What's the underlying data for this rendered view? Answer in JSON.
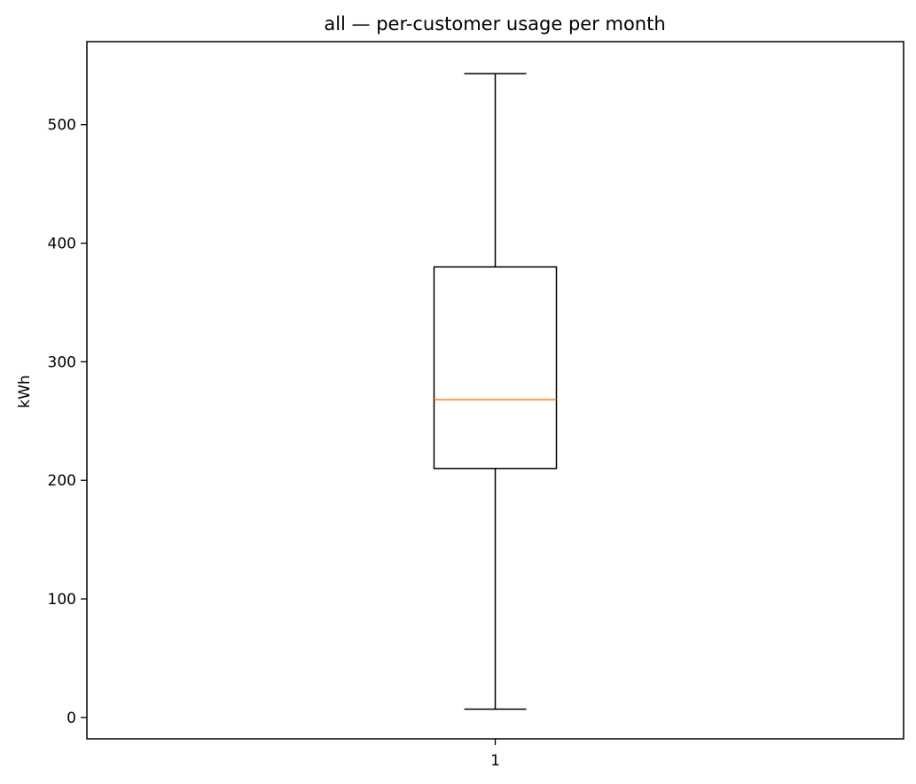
{
  "chart_data": {
    "type": "box",
    "title": "all — per-customer usage per month",
    "xlabel": "",
    "ylabel": "kWh",
    "ylim": [
      -18,
      570
    ],
    "x_ticks": [
      "1"
    ],
    "y_ticks": [
      0,
      100,
      200,
      300,
      400,
      500
    ],
    "grid": false,
    "boxes": [
      {
        "label": "1",
        "whisker_low": 7,
        "q1": 210,
        "median": 268,
        "q3": 380,
        "whisker_high": 543
      }
    ],
    "colors": {
      "box": "#000000",
      "median": "#ff7f0e"
    }
  }
}
